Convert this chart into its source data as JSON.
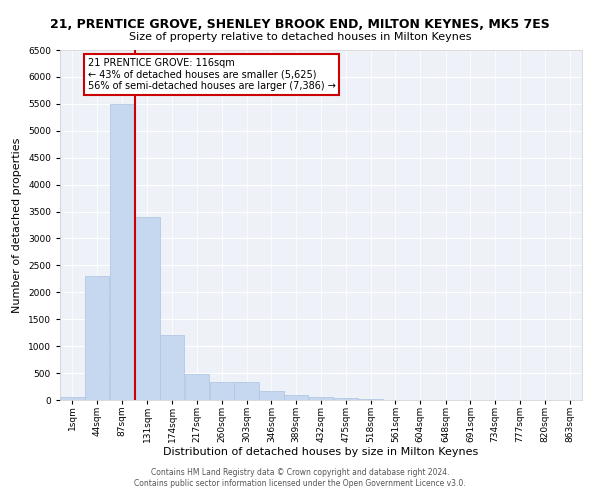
{
  "title1": "21, PRENTICE GROVE, SHENLEY BROOK END, MILTON KEYNES, MK5 7ES",
  "title2": "Size of property relative to detached houses in Milton Keynes",
  "xlabel": "Distribution of detached houses by size in Milton Keynes",
  "ylabel": "Number of detached properties",
  "bin_edges": [
    1,
    44,
    87,
    131,
    174,
    217,
    260,
    303,
    346,
    389,
    432,
    475,
    518,
    561,
    604,
    648,
    691,
    734,
    777,
    820,
    863
  ],
  "bar_heights": [
    50,
    2300,
    5500,
    3400,
    1200,
    480,
    330,
    330,
    160,
    100,
    50,
    30,
    10,
    5,
    5,
    3,
    2,
    2,
    1,
    1
  ],
  "bar_color": "#c5d8f0",
  "bar_edgecolor": "#aac4e0",
  "vline_x": 131,
  "vline_color": "#cc0000",
  "annotation_text": "21 PRENTICE GROVE: 116sqm\n← 43% of detached houses are smaller (5,625)\n56% of semi-detached houses are larger (7,386) →",
  "annotation_box_color": "white",
  "annotation_box_edgecolor": "#cc0000",
  "ylim": [
    0,
    6500
  ],
  "yticks": [
    0,
    500,
    1000,
    1500,
    2000,
    2500,
    3000,
    3500,
    4000,
    4500,
    5000,
    5500,
    6000,
    6500
  ],
  "bg_color": "#eef2f8",
  "footer_text": "Contains HM Land Registry data © Crown copyright and database right 2024.\nContains public sector information licensed under the Open Government Licence v3.0.",
  "tick_label_fontsize": 6.5,
  "axis_label_fontsize": 8,
  "title1_fontsize": 9,
  "title2_fontsize": 8
}
